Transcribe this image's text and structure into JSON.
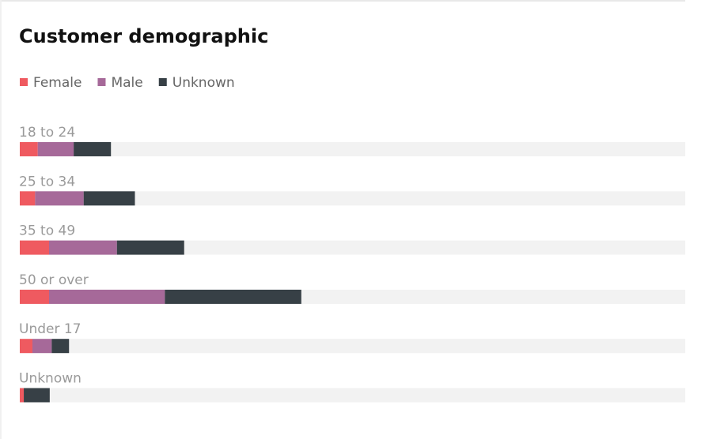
{
  "chart_data": {
    "type": "stacked-bar-horizontal",
    "title": "Customer demographic",
    "categories": [
      "18 to 24",
      "25 to 34",
      "35 to 49",
      "50 or over",
      "Under 17",
      "Unknown"
    ],
    "series": [
      {
        "name": "Female",
        "color": "#ef5a60",
        "values": [
          2.7,
          2.3,
          4.4,
          4.4,
          1.9,
          0.6
        ]
      },
      {
        "name": "Male",
        "color": "#a66999",
        "values": [
          5.4,
          7.3,
          10.2,
          17.4,
          2.9,
          0
        ]
      },
      {
        "name": "Unknown",
        "color": "#374046",
        "values": [
          5.6,
          7.7,
          10.1,
          20.5,
          2.6,
          3.9
        ]
      }
    ],
    "xlim": [
      0,
      100
    ]
  }
}
